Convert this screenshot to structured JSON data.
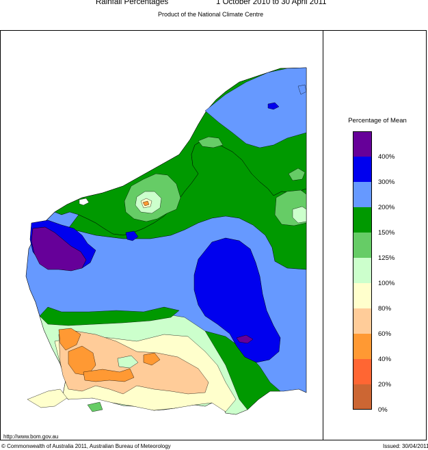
{
  "title": "Rainfall Percentages",
  "period": "1 October 2010 to 30 April 2011",
  "subtitle": "Product of the National Climate Centre",
  "legend": {
    "title": "Percentage of Mean",
    "classes": [
      {
        "color": "#660099"
      },
      {
        "color": "#0000ee"
      },
      {
        "color": "#6699ff"
      },
      {
        "color": "#009900"
      },
      {
        "color": "#66cc66"
      },
      {
        "color": "#ccffcc"
      },
      {
        "color": "#ffffcc"
      },
      {
        "color": "#ffcc99"
      },
      {
        "color": "#ff9933"
      },
      {
        "color": "#ff6633"
      },
      {
        "color": "#cc6633"
      }
    ],
    "ticks": [
      "400%",
      "300%",
      "200%",
      "150%",
      "125%",
      "100%",
      "80%",
      "60%",
      "40%",
      "20%",
      "0%"
    ]
  },
  "footer": {
    "url": "http://www.bom.gov.au",
    "copyright": "© Commonwealth of Australia 2011, Australian Bureau of Meteorology",
    "issued": "Issued: 30/04/2011"
  }
}
